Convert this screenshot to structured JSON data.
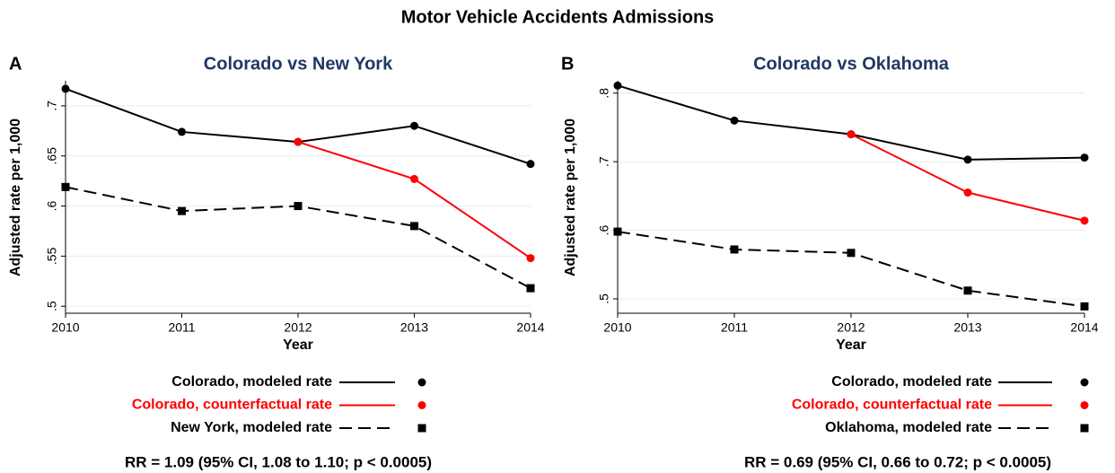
{
  "title": "Motor Vehicle Accidents Admissions",
  "chart_data": [
    {
      "type": "line",
      "panel": "A",
      "title": "Colorado vs New York",
      "xlabel": "Year",
      "ylabel": "Adjusted rate per 1,000",
      "x": [
        2010,
        2011,
        2012,
        2013,
        2014
      ],
      "xlim": [
        2010,
        2014
      ],
      "xticks": [
        2010,
        2011,
        2012,
        2013,
        2014
      ],
      "ylim": [
        0.493,
        0.725
      ],
      "yticks": [
        {
          "value": 0.5,
          "label": ".5"
        },
        {
          "value": 0.55,
          "label": ".55"
        },
        {
          "value": 0.6,
          "label": ".6"
        },
        {
          "value": 0.65,
          "label": ".65"
        },
        {
          "value": 0.7,
          "label": ".7"
        }
      ],
      "grid": true,
      "series": [
        {
          "name": "Colorado, modeled rate",
          "color": "#000000",
          "dash": false,
          "marker": "circle",
          "values": [
            0.717,
            0.674,
            0.664,
            0.68,
            0.642
          ]
        },
        {
          "name": "Colorado, counterfactual rate",
          "color": "#ff0000",
          "dash": false,
          "marker": "circle",
          "values": [
            null,
            null,
            0.664,
            0.627,
            0.548
          ]
        },
        {
          "name": "New York, modeled rate",
          "color": "#000000",
          "dash": true,
          "marker": "square",
          "values": [
            0.619,
            0.595,
            0.6,
            0.58,
            0.518
          ]
        }
      ],
      "annotation": "RR = 1.09 (95% CI, 1.08 to 1.10; p < 0.0005)"
    },
    {
      "type": "line",
      "panel": "B",
      "title": "Colorado vs Oklahoma",
      "xlabel": "Year",
      "ylabel": "Adjusted rate per 1,000",
      "x": [
        2010,
        2011,
        2012,
        2013,
        2014
      ],
      "xlim": [
        2010,
        2014
      ],
      "xticks": [
        2010,
        2011,
        2012,
        2013,
        2014
      ],
      "ylim": [
        0.479,
        0.818
      ],
      "yticks": [
        {
          "value": 0.5,
          "label": ".5"
        },
        {
          "value": 0.6,
          "label": ".6"
        },
        {
          "value": 0.7,
          "label": ".7"
        },
        {
          "value": 0.8,
          "label": ".8"
        }
      ],
      "grid": true,
      "series": [
        {
          "name": "Colorado, modeled rate",
          "color": "#000000",
          "dash": false,
          "marker": "circle",
          "values": [
            0.811,
            0.76,
            0.74,
            0.703,
            0.706
          ]
        },
        {
          "name": "Colorado, counterfactual rate",
          "color": "#ff0000",
          "dash": false,
          "marker": "circle",
          "values": [
            null,
            null,
            0.74,
            0.655,
            0.614
          ]
        },
        {
          "name": "Oklahoma, modeled rate",
          "color": "#000000",
          "dash": true,
          "marker": "square",
          "values": [
            0.598,
            0.572,
            0.567,
            0.512,
            0.489
          ]
        }
      ],
      "annotation": "RR = 0.69 (95% CI, 0.66 to 0.72; p < 0.0005)"
    }
  ]
}
